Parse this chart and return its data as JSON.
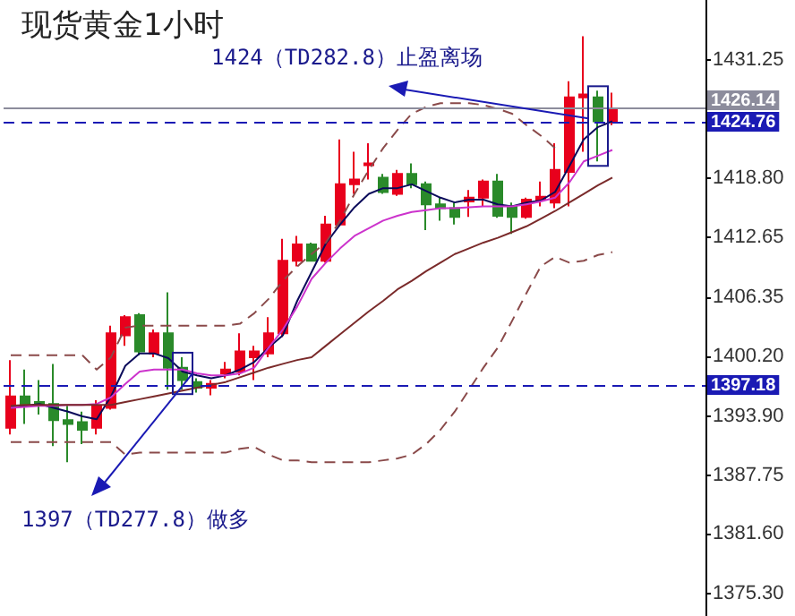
{
  "chart_data": {
    "type": "candlestick",
    "title": "现货黄金1小时",
    "categories": [
      null,
      null,
      null,
      null,
      null,
      null,
      null,
      null,
      null,
      null,
      null,
      null,
      null,
      null,
      null,
      null,
      null,
      null,
      null,
      null,
      null,
      null,
      null,
      null,
      null,
      null,
      null,
      null,
      null,
      null,
      null,
      null,
      null,
      null,
      null,
      null,
      null,
      null,
      null,
      null,
      null,
      null,
      null
    ],
    "series": [
      {
        "type": "candlestick",
        "ohlc": [
          [
            1392.7,
            1399.8,
            1392.0,
            1396.0
          ],
          [
            1396.0,
            1398.8,
            1393.1,
            1395.2
          ],
          [
            1395.4,
            1397.7,
            1394.1,
            1395.2
          ],
          [
            1395.2,
            1399.4,
            1390.8,
            1393.5
          ],
          [
            1393.5,
            1395.0,
            1389.1,
            1393.1
          ],
          [
            1393.3,
            1394.4,
            1391.0,
            1392.5
          ],
          [
            1392.7,
            1395.6,
            1392.0,
            1395.0
          ],
          [
            1394.8,
            1403.4,
            1394.6,
            1402.6
          ],
          [
            1402.4,
            1404.5,
            1401.3,
            1404.3
          ],
          [
            1404.5,
            1404.7,
            1400.3,
            1400.7
          ],
          [
            1400.5,
            1403.0,
            1400.1,
            1402.6
          ],
          [
            1402.6,
            1406.9,
            1396.7,
            1399.0
          ],
          [
            1399.0,
            1400.1,
            1396.7,
            1397.7
          ],
          [
            1397.5,
            1397.9,
            1396.4,
            1396.9
          ],
          [
            1396.9,
            1397.7,
            1396.1,
            1397.3
          ],
          [
            1398.4,
            1399.6,
            1397.9,
            1398.8
          ],
          [
            1398.6,
            1402.6,
            1398.2,
            1400.7
          ],
          [
            1400.1,
            1401.3,
            1397.7,
            1400.7
          ],
          [
            1400.5,
            1404.3,
            1400.1,
            1402.6
          ],
          [
            1402.6,
            1412.5,
            1402.2,
            1410.2
          ],
          [
            1410.2,
            1412.8,
            1409.6,
            1411.9
          ],
          [
            1411.9,
            1412.1,
            1410.2,
            1410.2
          ],
          [
            1410.2,
            1414.9,
            1410.0,
            1414.0
          ],
          [
            1414.0,
            1422.9,
            1413.8,
            1418.2
          ],
          [
            1418.2,
            1421.6,
            1417.2,
            1418.7
          ],
          [
            1420.2,
            1422.5,
            1418.7,
            1420.4
          ],
          [
            1418.9,
            1419.3,
            1417.2,
            1417.4
          ],
          [
            1417.2,
            1419.7,
            1417.0,
            1419.3
          ],
          [
            1419.3,
            1420.4,
            1417.8,
            1418.2
          ],
          [
            1418.2,
            1418.5,
            1413.4,
            1416.1
          ],
          [
            1416.1,
            1416.8,
            1414.4,
            1415.7
          ],
          [
            1415.7,
            1416.3,
            1414.0,
            1414.8
          ],
          [
            1416.4,
            1417.6,
            1414.8,
            1416.8
          ],
          [
            1416.8,
            1418.7,
            1415.9,
            1418.5
          ],
          [
            1418.5,
            1419.3,
            1414.7,
            1414.9
          ],
          [
            1415.9,
            1416.3,
            1413.0,
            1414.8
          ],
          [
            1414.8,
            1416.8,
            1414.6,
            1416.6
          ],
          [
            1416.6,
            1418.5,
            1415.9,
            1416.9
          ],
          [
            1416.3,
            1422.5,
            1415.7,
            1419.7
          ],
          [
            1419.5,
            1429.0,
            1415.9,
            1427.3
          ],
          [
            1427.3,
            1433.7,
            1421.6,
            1427.6
          ],
          [
            1427.3,
            1428.0,
            1420.6,
            1424.8
          ],
          [
            1424.8,
            1427.8,
            1424.4,
            1426.1
          ]
        ],
        "colors": [
          "#e8001c",
          "#2a8a2a",
          "#2a8a2a",
          "#2a8a2a",
          "#2a8a2a",
          "#2a8a2a",
          "#e8001c",
          "#e8001c",
          "#e8001c",
          "#2a8a2a",
          "#e8001c",
          "#2a8a2a",
          "#2a8a2a",
          "#2a8a2a",
          "#e8001c",
          "#e8001c",
          "#e8001c",
          "#e8001c",
          "#e8001c",
          "#e8001c",
          "#e8001c",
          "#2a8a2a",
          "#e8001c",
          "#e8001c",
          "#e8001c",
          "#e8001c",
          "#2a8a2a",
          "#e8001c",
          "#2a8a2a",
          "#2a8a2a",
          "#2a8a2a",
          "#2a8a2a",
          "#e8001c",
          "#e8001c",
          "#2a8a2a",
          "#2a8a2a",
          "#e8001c",
          "#e8001c",
          "#e8001c",
          "#e8001c",
          "#e8001c",
          "#2a8a2a",
          "#e8001c"
        ]
      },
      {
        "type": "line",
        "color": "#0a0a5a",
        "values": [
          1394.8,
          1395.0,
          1395.2,
          1394.8,
          1394.4,
          1393.9,
          1393.6,
          1396.0,
          1399.2,
          1400.5,
          1400.5,
          1400.0,
          1398.6,
          1398.2,
          1397.9,
          1398.2,
          1398.8,
          1399.6,
          1401.1,
          1402.4,
          1406.0,
          1409.0,
          1412.0,
          1414.0,
          1415.8,
          1417.2,
          1417.8,
          1417.8,
          1418.2,
          1417.5,
          1416.8,
          1416.3,
          1416.6,
          1416.6,
          1416.1,
          1415.9,
          1416.3,
          1416.5,
          1417.4,
          1420.1,
          1422.9,
          1424.2,
          1424.8
        ]
      },
      {
        "type": "line",
        "color": "#cc33cc",
        "values": [
          1394.8,
          1394.9,
          1395.0,
          1395.0,
          1395.1,
          1395.1,
          1395.2,
          1395.9,
          1397.3,
          1398.6,
          1398.8,
          1398.8,
          1398.8,
          1398.4,
          1398.2,
          1398.2,
          1398.4,
          1399.0,
          1401.1,
          1403.0,
          1405.4,
          1408.3,
          1410.0,
          1411.5,
          1412.8,
          1413.6,
          1414.4,
          1414.9,
          1415.3,
          1415.5,
          1415.7,
          1415.7,
          1415.8,
          1415.9,
          1415.9,
          1415.9,
          1416.1,
          1416.4,
          1416.8,
          1418.4,
          1420.6,
          1421.2,
          1421.8
        ]
      },
      {
        "type": "line",
        "color": "#7a2a2a",
        "values": [
          1395.0,
          1395.1,
          1395.1,
          1395.1,
          1395.1,
          1395.1,
          1395.1,
          1395.1,
          1395.4,
          1395.7,
          1396.0,
          1396.3,
          1396.6,
          1396.9,
          1397.2,
          1397.5,
          1398.0,
          1398.5,
          1399.0,
          1399.4,
          1399.8,
          1400.1,
          1401.3,
          1402.5,
          1403.7,
          1404.9,
          1406.0,
          1407.2,
          1408.1,
          1409.1,
          1410.0,
          1410.9,
          1411.5,
          1412.1,
          1412.6,
          1413.2,
          1413.8,
          1414.6,
          1415.4,
          1416.3,
          1417.2,
          1418.1,
          1418.9
        ]
      },
      {
        "type": "line",
        "color": "#8a4a4a",
        "line_style": "dashed",
        "values": [
          1400.3,
          1400.3,
          1400.3,
          1400.3,
          1400.3,
          1400.3,
          1398.8,
          1400.1,
          1403.2,
          1403.4,
          1403.4,
          1403.4,
          1403.4,
          1403.4,
          1403.4,
          1403.4,
          1403.6,
          1404.7,
          1406.2,
          1408.1,
          1409.6,
          1410.9,
          1412.1,
          1414.4,
          1417.2,
          1419.7,
          1422.0,
          1423.9,
          1425.6,
          1426.3,
          1426.7,
          1426.7,
          1426.7,
          1426.5,
          1426.1,
          1425.6,
          1424.4,
          1423.3,
          1422.0,
          null,
          null,
          null,
          null
        ]
      },
      {
        "type": "line",
        "color": "#8a4a4a",
        "line_style": "dashed",
        "values": [
          1391.2,
          1391.2,
          1391.2,
          1391.2,
          1391.2,
          1391.2,
          1391.2,
          1391.2,
          1389.9,
          1390.1,
          1390.1,
          1390.1,
          1390.1,
          1390.1,
          1390.1,
          1390.1,
          1390.5,
          1390.7,
          1389.9,
          1389.3,
          1389.3,
          1389.1,
          1389.1,
          1389.1,
          1389.1,
          1389.1,
          1389.3,
          1389.5,
          1389.9,
          1391.0,
          1392.5,
          1394.4,
          1396.7,
          1399.0,
          1401.1,
          1403.9,
          1406.8,
          1409.6,
          1410.6,
          1410.0,
          1410.2,
          1410.8,
          1411.1
        ]
      }
    ],
    "ylim": [
      1373,
      1437.5
    ],
    "yticks": [
      {
        "value": 1375.3,
        "label": "1375.30"
      },
      {
        "value": 1381.6,
        "label": "1381.60"
      },
      {
        "value": 1387.75,
        "label": "1387.75"
      },
      {
        "value": 1393.9,
        "label": "1393.90"
      },
      {
        "value": 1400.2,
        "label": "1400.20"
      },
      {
        "value": 1406.35,
        "label": "1406.35"
      },
      {
        "value": 1412.65,
        "label": "1412.65"
      },
      {
        "value": 1418.8,
        "label": "1418.80"
      },
      {
        "value": 1431.25,
        "label": "1431.25"
      }
    ],
    "ref_lines": [
      {
        "axis": "y",
        "value": 1426.14,
        "label": "1426.14",
        "color": "#8c8c9c",
        "line_style": "solid"
      },
      {
        "axis": "y",
        "value": 1424.76,
        "label": "1424.76",
        "color": "#1a1ab4",
        "line_style": "dashed"
      },
      {
        "axis": "y",
        "value": 1397.18,
        "label": "1397.18",
        "color": "#1a1ab4",
        "line_style": "dashed"
      }
    ],
    "annotations": [
      "1424（TD282.8）止盈离场",
      "1397（TD277.8）做多"
    ]
  }
}
